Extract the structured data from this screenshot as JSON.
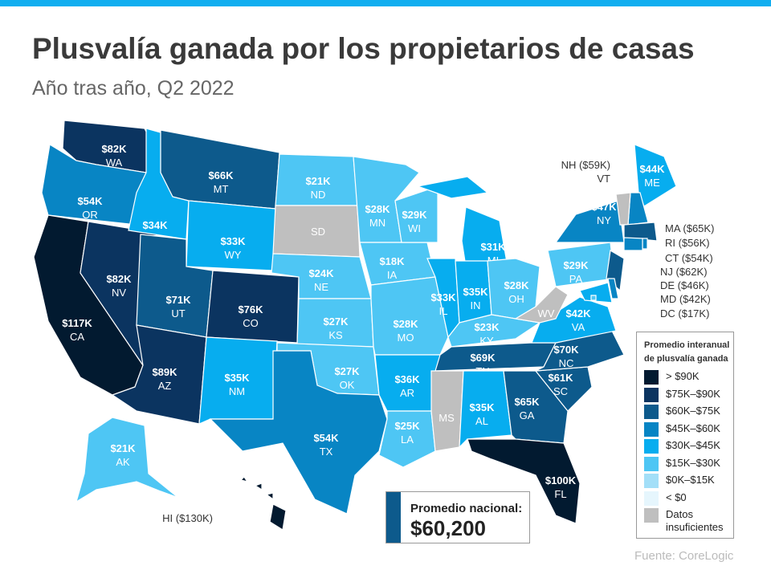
{
  "title": "Plusvalía ganada por los propietarios de casas",
  "subtitle": "Año tras año, Q2 2022",
  "legend": {
    "title_1": "Promedio interanual",
    "title_2": "de plusvalía ganada",
    "items": [
      {
        "label": "> $90K",
        "color": "#021a30"
      },
      {
        "label": "$75K–$90K",
        "color": "#0b3460"
      },
      {
        "label": "$60K–$75K",
        "color": "#0d5a8c"
      },
      {
        "label": "$45K–$60K",
        "color": "#0885c4"
      },
      {
        "label": "$30K–$45K",
        "color": "#07adef"
      },
      {
        "label": "$15K–$30K",
        "color": "#4ec6f4"
      },
      {
        "label": "$0K–$15K",
        "color": "#a3dff8"
      },
      {
        "label": "< $0",
        "color": "#e6f6fd"
      },
      {
        "label": "Datos insuficientes",
        "color": "#bfbfbf"
      }
    ]
  },
  "national": {
    "label": "Promedio nacional:",
    "value": "$60,200"
  },
  "source": "Fuente:  CoreLogic",
  "states": [
    {
      "abbr": "WA",
      "value": "$82K",
      "bin": 1
    },
    {
      "abbr": "OR",
      "value": "$54K",
      "bin": 3
    },
    {
      "abbr": "CA",
      "value": "$117K",
      "bin": 0
    },
    {
      "abbr": "NV",
      "value": "$82K",
      "bin": 1
    },
    {
      "abbr": "ID",
      "value": "$34K",
      "bin": 4
    },
    {
      "abbr": "MT",
      "value": "$66K",
      "bin": 2
    },
    {
      "abbr": "WY",
      "value": "$33K",
      "bin": 4
    },
    {
      "abbr": "UT",
      "value": "$71K",
      "bin": 2
    },
    {
      "abbr": "CO",
      "value": "$76K",
      "bin": 1
    },
    {
      "abbr": "AZ",
      "value": "$89K",
      "bin": 1
    },
    {
      "abbr": "NM",
      "value": "$35K",
      "bin": 4
    },
    {
      "abbr": "ND",
      "value": "$21K",
      "bin": 5
    },
    {
      "abbr": "SD",
      "value": "",
      "bin": 8
    },
    {
      "abbr": "NE",
      "value": "$24K",
      "bin": 5
    },
    {
      "abbr": "KS",
      "value": "$27K",
      "bin": 5
    },
    {
      "abbr": "OK",
      "value": "$27K",
      "bin": 5
    },
    {
      "abbr": "TX",
      "value": "$54K",
      "bin": 3
    },
    {
      "abbr": "MN",
      "value": "$28K",
      "bin": 5
    },
    {
      "abbr": "IA",
      "value": "$18K",
      "bin": 5
    },
    {
      "abbr": "MO",
      "value": "$28K",
      "bin": 5
    },
    {
      "abbr": "AR",
      "value": "$36K",
      "bin": 4
    },
    {
      "abbr": "LA",
      "value": "$25K",
      "bin": 5
    },
    {
      "abbr": "WI",
      "value": "$29K",
      "bin": 5
    },
    {
      "abbr": "IL",
      "value": "$33K",
      "bin": 4
    },
    {
      "abbr": "MI",
      "value": "$31K",
      "bin": 4
    },
    {
      "abbr": "IN",
      "value": "$35K",
      "bin": 4
    },
    {
      "abbr": "OH",
      "value": "$28K",
      "bin": 5
    },
    {
      "abbr": "KY",
      "value": "$23K",
      "bin": 5
    },
    {
      "abbr": "TN",
      "value": "$69K",
      "bin": 2
    },
    {
      "abbr": "MS",
      "value": "",
      "bin": 8
    },
    {
      "abbr": "AL",
      "value": "$35K",
      "bin": 4
    },
    {
      "abbr": "GA",
      "value": "$65K",
      "bin": 2
    },
    {
      "abbr": "FL",
      "value": "$100K",
      "bin": 0
    },
    {
      "abbr": "SC",
      "value": "$61K",
      "bin": 2
    },
    {
      "abbr": "NC",
      "value": "$70K",
      "bin": 2
    },
    {
      "abbr": "VA",
      "value": "$42K",
      "bin": 4
    },
    {
      "abbr": "WV",
      "value": "",
      "bin": 8
    },
    {
      "abbr": "PA",
      "value": "$29K",
      "bin": 5
    },
    {
      "abbr": "NY",
      "value": "$47K",
      "bin": 3
    },
    {
      "abbr": "ME",
      "value": "$44K",
      "bin": 4
    },
    {
      "abbr": "AK",
      "value": "$21K",
      "bin": 5
    },
    {
      "abbr": "HI",
      "value": "$130K",
      "bin": 0
    },
    {
      "abbr": "NH",
      "value": "$59K",
      "bin": 3
    },
    {
      "abbr": "VT",
      "value": "",
      "bin": 8
    },
    {
      "abbr": "MA",
      "value": "$65K",
      "bin": 2
    },
    {
      "abbr": "RI",
      "value": "$56K",
      "bin": 3
    },
    {
      "abbr": "CT",
      "value": "$54K",
      "bin": 3
    },
    {
      "abbr": "NJ",
      "value": "$62K",
      "bin": 2
    },
    {
      "abbr": "DE",
      "value": "$46K",
      "bin": 3
    },
    {
      "abbr": "MD",
      "value": "$42K",
      "bin": 4
    },
    {
      "abbr": "DC",
      "value": "$17K",
      "bin": 5
    }
  ]
}
